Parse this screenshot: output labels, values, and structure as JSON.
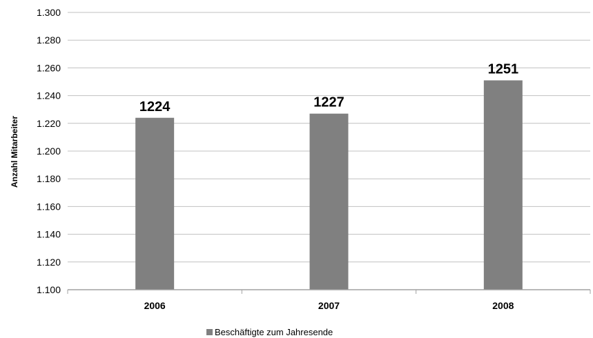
{
  "chart_data": {
    "type": "bar",
    "categories": [
      "2006",
      "2007",
      "2008"
    ],
    "series": [
      {
        "name": "Beschäftigte zum Jahresende",
        "values": [
          1224,
          1227,
          1251
        ],
        "color": "#808080"
      }
    ],
    "data_labels": [
      "1224",
      "1227",
      "1251"
    ],
    "ylabel": "Anzahl Mitarbeiter",
    "xlabel": "",
    "ylim": [
      1100,
      1300
    ],
    "yticks": [
      1100,
      1120,
      1140,
      1160,
      1180,
      1200,
      1220,
      1240,
      1260,
      1280,
      1300
    ],
    "ytick_labels": [
      "1.100",
      "1.120",
      "1.140",
      "1.160",
      "1.180",
      "1.200",
      "1.220",
      "1.240",
      "1.260",
      "1.280",
      "1.300"
    ],
    "grid": true,
    "legend_position": "bottom"
  }
}
